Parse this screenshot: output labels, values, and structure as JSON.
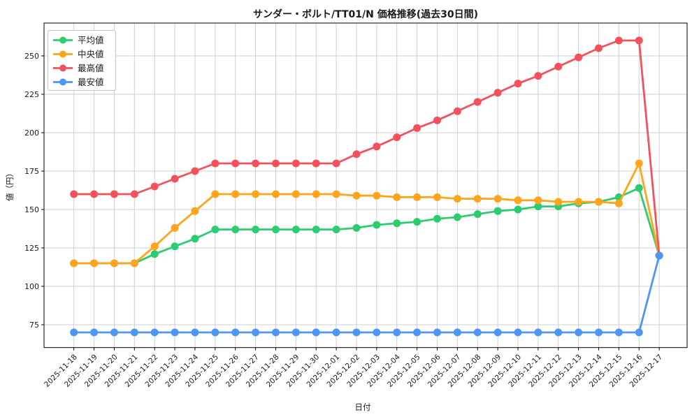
{
  "chart_data": {
    "type": "line",
    "title": "サンダー・ボルト/TT01/N 価格推移(過去30日間)",
    "xlabel": "日付",
    "ylabel": "値（円）",
    "grid": true,
    "legend_position": "upper-left",
    "ylim": [
      60,
      271
    ],
    "y_ticks": [
      250,
      225,
      200,
      175,
      150,
      125,
      100,
      75
    ],
    "x": [
      "2025-11-18",
      "2025-11-19",
      "2025-11-20",
      "2025-11-21",
      "2025-11-22",
      "2025-11-23",
      "2025-11-24",
      "2025-11-25",
      "2025-11-26",
      "2025-11-27",
      "2025-11-28",
      "2025-11-29",
      "2025-11-30",
      "2025-12-01",
      "2025-12-02",
      "2025-12-03",
      "2025-12-04",
      "2025-12-05",
      "2025-12-06",
      "2025-12-07",
      "2025-12-08",
      "2025-12-09",
      "2025-12-10",
      "2025-12-11",
      "2025-12-12",
      "2025-12-13",
      "2025-12-14",
      "2025-12-15",
      "2025-12-16",
      "2025-12-17"
    ],
    "series": [
      {
        "name": "平均値",
        "color": "#2ecc71",
        "values": [
          115,
          115,
          115,
          115,
          121,
          126,
          131,
          137,
          137,
          137,
          137,
          137,
          137,
          137,
          138,
          140,
          141,
          142,
          144,
          145,
          147,
          149,
          150,
          152,
          152,
          154,
          155,
          158,
          164,
          120
        ]
      },
      {
        "name": "中央値",
        "color": "#ffa41b",
        "values": [
          115,
          115,
          115,
          115,
          126,
          138,
          149,
          160,
          160,
          160,
          160,
          160,
          160,
          160,
          159,
          159,
          158,
          158,
          158,
          157,
          157,
          157,
          156,
          156,
          155,
          155,
          155,
          154,
          180,
          120
        ]
      },
      {
        "name": "最高値",
        "color": "#f4515c",
        "values": [
          160,
          160,
          160,
          160,
          165,
          170,
          175,
          180,
          180,
          180,
          180,
          180,
          180,
          180,
          186,
          191,
          197,
          203,
          208,
          214,
          220,
          226,
          232,
          237,
          243,
          249,
          255,
          260,
          260,
          120
        ]
      },
      {
        "name": "最安値",
        "color": "#4d96f5",
        "values": [
          70,
          70,
          70,
          70,
          70,
          70,
          70,
          70,
          70,
          70,
          70,
          70,
          70,
          70,
          70,
          70,
          70,
          70,
          70,
          70,
          70,
          70,
          70,
          70,
          70,
          70,
          70,
          70,
          70,
          120
        ]
      }
    ]
  }
}
